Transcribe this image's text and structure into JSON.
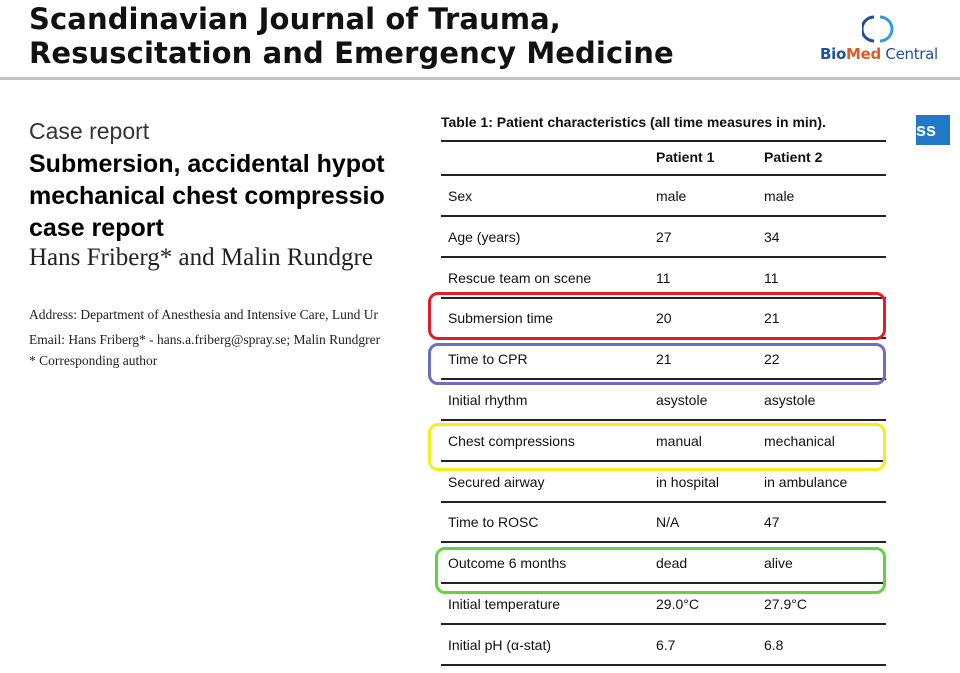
{
  "header": {
    "journal_title_line1": "Scandinavian Journal of Trauma,",
    "journal_title_line2": "Resuscitation and Emergency Medicine",
    "publisher_bio": "Bio",
    "publisher_med": "Med",
    "publisher_central": " Central",
    "publisher_logo_icon": "biomed-central-logo-icon"
  },
  "access_badge": "cess",
  "article": {
    "type": "Case report",
    "title_line1": "Submersion, accidental hypot",
    "title_line2": "mechanical chest compressio",
    "title_line3": "case report",
    "authors": "Hans Friberg* and Malin Rundgre",
    "address": "Address: Department of Anesthesia and Intensive Care, Lund Ur",
    "email": "Email: Hans Friberg* - hans.a.friberg@spray.se; Malin Rundgrer",
    "corresponding": "* Corresponding author"
  },
  "table": {
    "caption": "Table 1: Patient characteristics (all time measures in min).",
    "columns": [
      "",
      "Patient 1",
      "Patient 2"
    ],
    "rows": [
      [
        "Sex",
        "male",
        "male"
      ],
      [
        "Age (years)",
        "27",
        "34"
      ],
      [
        "Rescue team on scene",
        "11",
        "11"
      ],
      [
        "Submersion time",
        "20",
        "21"
      ],
      [
        "Time to CPR",
        "21",
        "22"
      ],
      [
        "Initial rhythm",
        "asystole",
        "asystole"
      ],
      [
        "Chest compressions",
        "manual",
        "mechanical"
      ],
      [
        "Secured airway",
        "in hospital",
        "in ambulance"
      ],
      [
        "Time to ROSC",
        "N/A",
        "47"
      ],
      [
        "Outcome 6 months",
        "dead",
        "alive"
      ],
      [
        "Initial temperature",
        "29.0°C",
        "27.9°C"
      ],
      [
        "Initial pH (α-stat)",
        "6.7",
        "6.8"
      ]
    ]
  },
  "highlight_colors": {
    "submersion_time": "#e01e2a",
    "time_to_cpr": "#6a6fbf",
    "chest_compressions": "#f2ef1c",
    "outcome_6_months": "#5fd53a"
  }
}
